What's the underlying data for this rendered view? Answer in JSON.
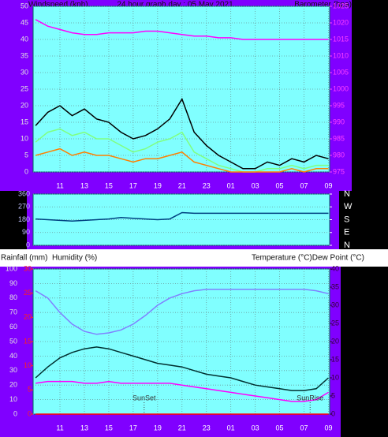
{
  "chart_data": [
    {
      "type": "line",
      "title": "24 hour graph day : 05 May 2021",
      "y_label": "Windspeed (kph)",
      "y2_label": "Barometer (hpa)",
      "x": [
        9,
        10,
        11,
        12,
        13,
        14,
        15,
        16,
        17,
        18,
        19,
        20,
        21,
        22,
        23,
        24,
        25,
        26,
        27,
        28,
        29,
        30,
        31,
        32,
        33
      ],
      "xlim": [
        8.8,
        33.1
      ],
      "xticks": [
        11,
        13,
        15,
        17,
        19,
        21,
        23,
        {
          "value": 25,
          "label": "01"
        },
        {
          "value": 27,
          "label": "03"
        },
        {
          "value": 29,
          "label": "05"
        },
        {
          "value": 31,
          "label": "07"
        },
        {
          "value": 33,
          "label": "09"
        }
      ],
      "ylim": [
        0,
        50
      ],
      "yticks": [
        0,
        5,
        10,
        15,
        20,
        25,
        30,
        35,
        40,
        45,
        50
      ],
      "y2lim": [
        975,
        1025
      ],
      "y2ticks": [
        975,
        980,
        985,
        990,
        995,
        1000,
        1005,
        1010,
        1015,
        1020,
        1025
      ],
      "grid": true,
      "series": [
        {
          "color": "#80ff80",
          "values": [
            9,
            12,
            13,
            11,
            12,
            10,
            10,
            8,
            6,
            7,
            9,
            10,
            12,
            6,
            4,
            2,
            1,
            0,
            0,
            1,
            1,
            2,
            1,
            2,
            2
          ]
        },
        {
          "color": "#000000",
          "values": [
            14,
            18,
            20,
            17,
            19,
            16,
            15,
            12,
            10,
            11,
            13,
            16,
            22,
            12,
            8,
            5,
            3,
            1,
            1,
            3,
            2,
            4,
            3,
            5,
            4
          ]
        },
        {
          "color": "#ff8000",
          "values": [
            5,
            6,
            7,
            5,
            6,
            5,
            5,
            4,
            3,
            4,
            4,
            5,
            6,
            3,
            2,
            1,
            0,
            0,
            0,
            0,
            0,
            1,
            0,
            1,
            1
          ]
        },
        {
          "color": "#ff00ff",
          "axis": "y2",
          "values": [
            1021,
            1019,
            1018,
            1017,
            1016.5,
            1016.5,
            1017,
            1017,
            1017,
            1017.5,
            1017.5,
            1017,
            1016.5,
            1016,
            1016,
            1015.5,
            1015.5,
            1015,
            1015,
            1015,
            1015,
            1015,
            1015,
            1015,
            1015
          ]
        }
      ]
    },
    {
      "type": "line",
      "x": [
        9,
        10,
        11,
        12,
        13,
        14,
        15,
        16,
        17,
        18,
        19,
        20,
        21,
        22,
        23,
        24,
        25,
        26,
        27,
        28,
        29,
        30,
        31,
        32,
        33
      ],
      "xlim": [
        8.8,
        33.1
      ],
      "ylim": [
        0,
        360
      ],
      "yticks": [
        0,
        90,
        180,
        270,
        360
      ],
      "y2lim": [
        0,
        360
      ],
      "y2ticks": [
        {
          "value": 0,
          "label": "N"
        },
        {
          "value": 90,
          "label": "E"
        },
        {
          "value": 180,
          "label": "S"
        },
        {
          "value": 270,
          "label": "W"
        },
        {
          "value": 360,
          "label": "N"
        }
      ],
      "grid": true,
      "series": [
        {
          "color": "#004080",
          "values": [
            185,
            180,
            175,
            170,
            175,
            180,
            185,
            195,
            190,
            185,
            180,
            185,
            230,
            225,
            225,
            225,
            225,
            225,
            225,
            225,
            225,
            225,
            225,
            225,
            225
          ]
        }
      ]
    },
    {
      "type": "line",
      "y3_label": "Rainfall (mm)",
      "y_label": "Humidity (%)",
      "y2_label": "Temperature (°C)Dew Point (°C)",
      "x": [
        9,
        10,
        11,
        12,
        13,
        14,
        15,
        16,
        17,
        18,
        19,
        20,
        21,
        22,
        23,
        24,
        25,
        26,
        27,
        28,
        29,
        30,
        31,
        32,
        33
      ],
      "xlim": [
        8.8,
        33.1
      ],
      "xticks": [
        11,
        13,
        15,
        17,
        19,
        21,
        23,
        {
          "value": 25,
          "label": "01"
        },
        {
          "value": 27,
          "label": "03"
        },
        {
          "value": 29,
          "label": "05"
        },
        {
          "value": 31,
          "label": "07"
        },
        {
          "value": 33,
          "label": "09"
        }
      ],
      "ylim": [
        0,
        100
      ],
      "yticks": [
        0,
        10,
        20,
        30,
        40,
        50,
        60,
        70,
        80,
        90,
        100
      ],
      "y2lim": [
        0,
        40
      ],
      "y2ticks": [
        0,
        5,
        10,
        15,
        20,
        25,
        30,
        35,
        40
      ],
      "y3lim": [
        0,
        30
      ],
      "y3ticks": [
        0,
        5,
        10,
        15,
        20,
        25,
        30
      ],
      "grid": true,
      "annotations": [
        {
          "text": "SunSet",
          "x": 17.9
        },
        {
          "text": "SunRise",
          "x": 31.5
        }
      ],
      "series": [
        {
          "color": "#8080ff",
          "values": [
            85,
            80,
            70,
            62,
            57,
            55,
            56,
            58,
            62,
            68,
            75,
            80,
            83,
            85,
            86,
            86,
            86,
            86,
            86,
            86,
            86,
            86,
            86,
            85,
            83
          ]
        },
        {
          "color": "#003030",
          "axis": "y2",
          "values": [
            10,
            13,
            15.5,
            17,
            18,
            18.5,
            18,
            17,
            16,
            15,
            14,
            13.5,
            13,
            12,
            11,
            10.5,
            10,
            9,
            8,
            7.5,
            7,
            6.5,
            6.5,
            7,
            10
          ]
        },
        {
          "color": "#ff00ff",
          "axis": "y2",
          "values": [
            8.5,
            9,
            9,
            9,
            8.5,
            8.5,
            9,
            8.5,
            8.5,
            8.5,
            8.5,
            8.5,
            8,
            7.5,
            7,
            6.5,
            6,
            5.5,
            5,
            4.5,
            4,
            3.5,
            3.5,
            4,
            6
          ]
        },
        {
          "color": "#ff0000",
          "axis": "y3",
          "values": [
            0,
            0,
            0,
            0,
            0,
            0,
            0,
            0,
            0,
            0,
            0,
            0,
            0,
            0,
            0,
            0,
            0,
            0,
            0,
            0,
            0,
            0,
            0,
            0,
            0
          ]
        }
      ]
    }
  ]
}
